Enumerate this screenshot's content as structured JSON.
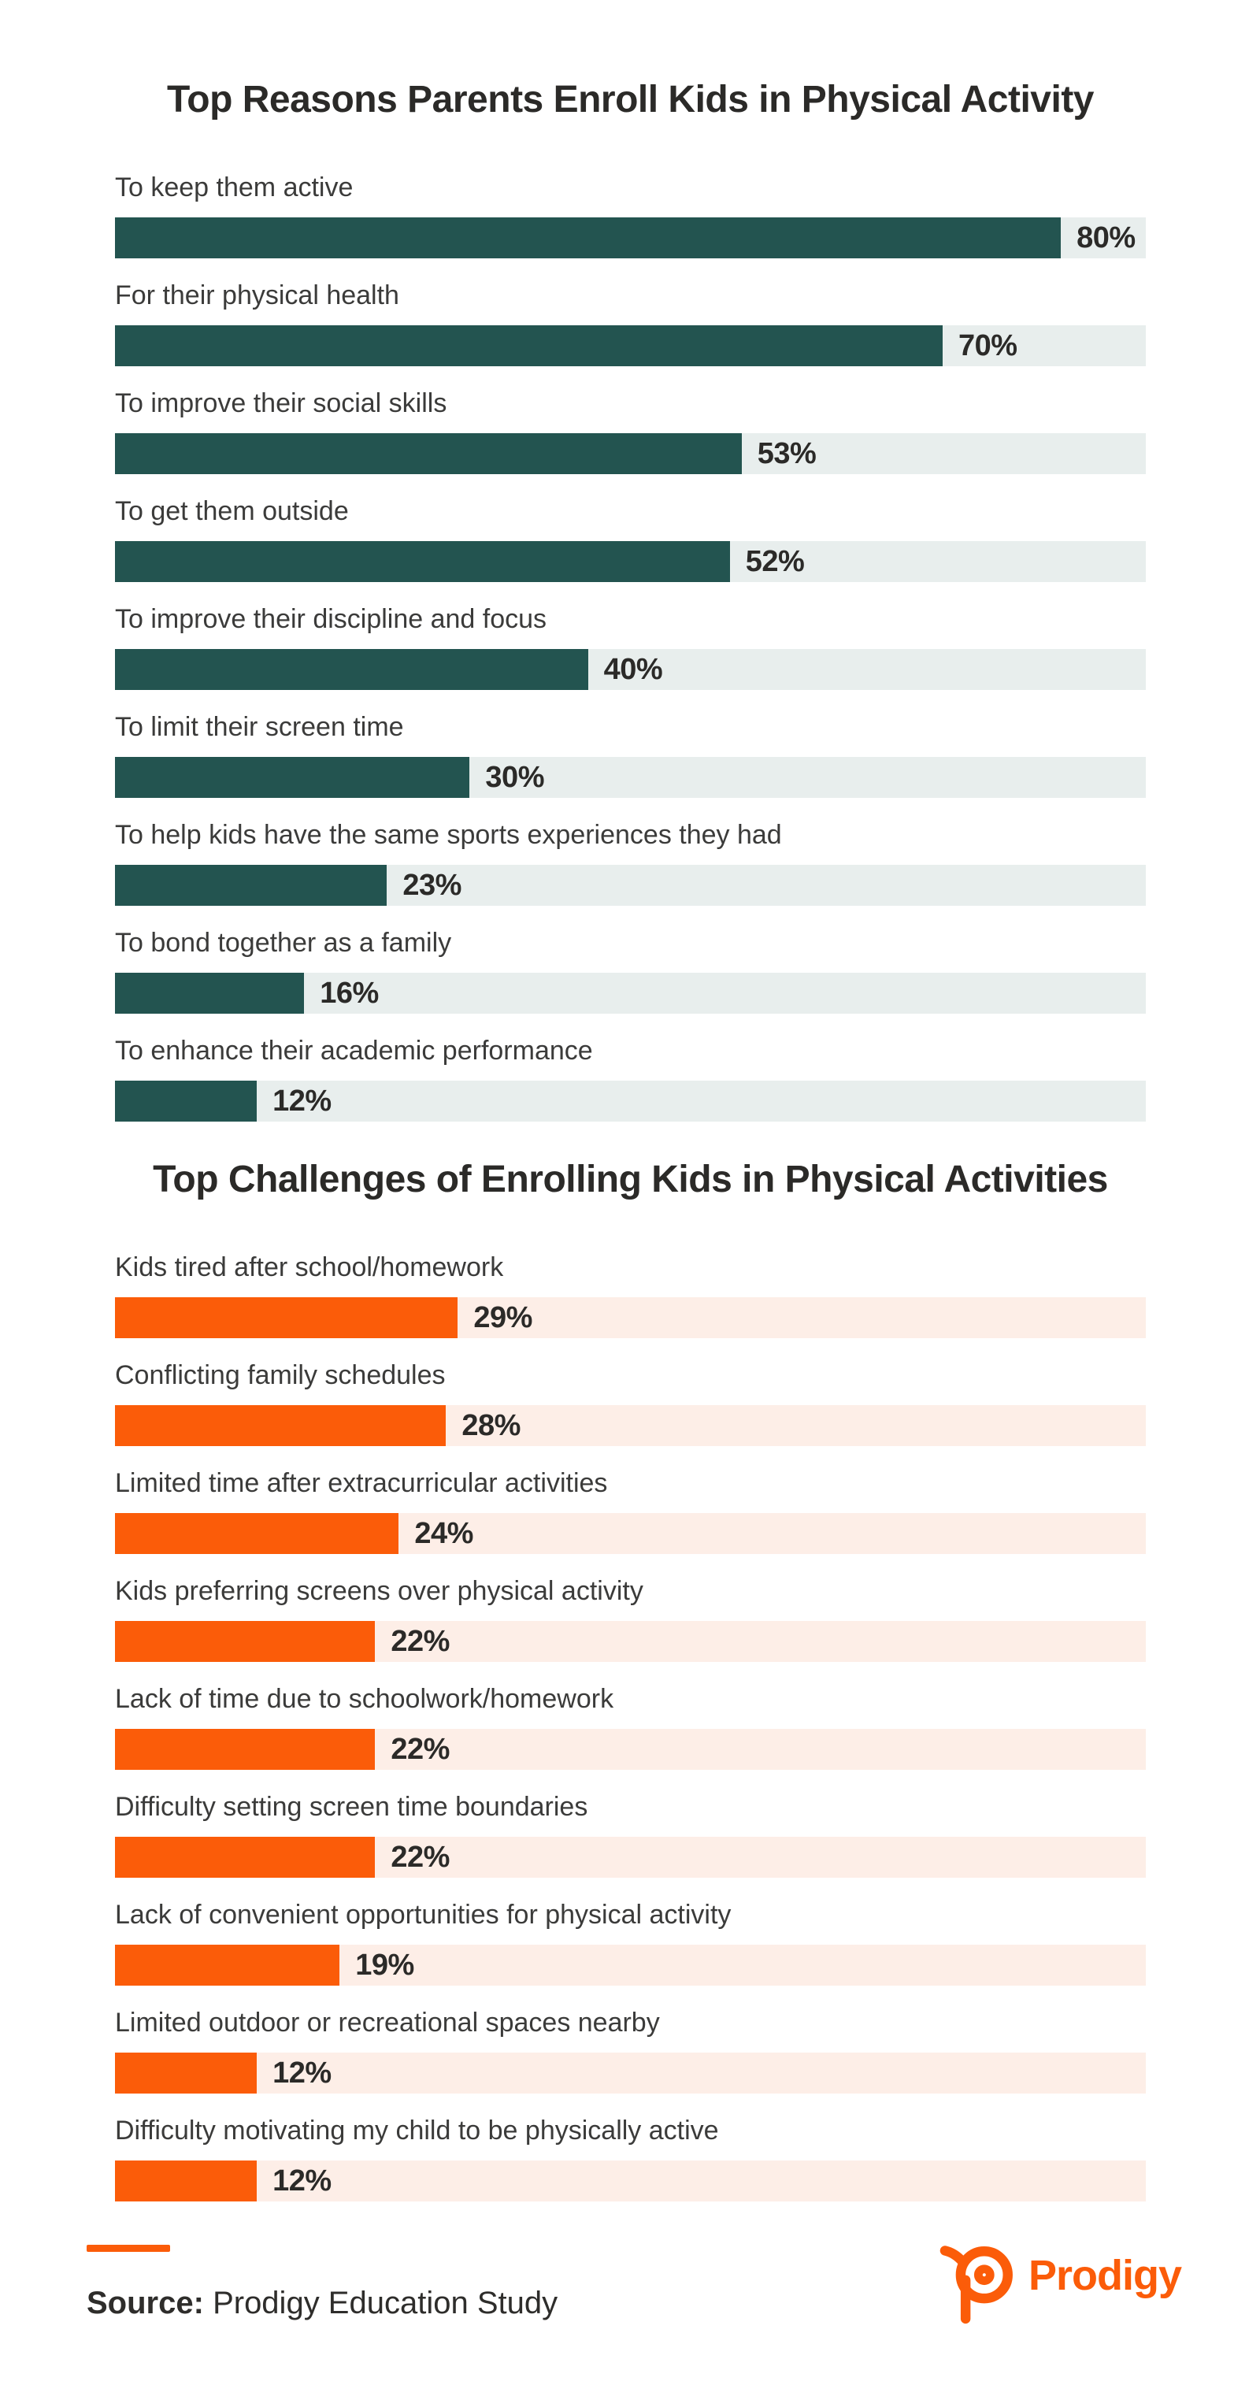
{
  "chart_data": [
    {
      "type": "bar",
      "orientation": "horizontal",
      "title": "Top Reasons Parents Enroll Kids in Physical Activity",
      "categories": [
        "To keep them active",
        "For their physical health",
        "To improve their social skills",
        "To get them outside",
        "To improve their discipline and focus",
        "To limit their screen time",
        "To help kids have the same sports experiences they had",
        "To bond together as a family",
        "To enhance their academic performance"
      ],
      "values": [
        80,
        70,
        53,
        52,
        40,
        30,
        23,
        16,
        12
      ],
      "unit": "%",
      "xlim": [
        0,
        87
      ],
      "grid": false,
      "legend": "none",
      "bar_color": "#235450",
      "track_color": "#e8eeed",
      "value_label_position": "right-of-bar"
    },
    {
      "type": "bar",
      "orientation": "horizontal",
      "title": "Top Challenges of Enrolling Kids in Physical Activities",
      "categories": [
        "Kids tired after school/homework",
        "Conflicting family schedules",
        "Limited time after extracurricular activities",
        "Kids preferring screens over physical activity",
        "Lack of time due to schoolwork/homework",
        "Difficulty setting screen time boundaries",
        "Lack of convenient opportunities for physical activity",
        "Limited outdoor or recreational spaces nearby",
        "Difficulty motivating my child to be physically active"
      ],
      "values": [
        29,
        28,
        24,
        22,
        22,
        22,
        19,
        12,
        12
      ],
      "unit": "%",
      "xlim": [
        0,
        87
      ],
      "grid": false,
      "legend": "none",
      "bar_color": "#fb5c09",
      "track_color": "#fdeee7",
      "value_label_position": "right-of-bar"
    }
  ],
  "footer": {
    "source_label": "Source:",
    "source_text": "Prodigy Education Study",
    "logo_text": "Prodigy",
    "accent_color": "#fb5c09"
  }
}
